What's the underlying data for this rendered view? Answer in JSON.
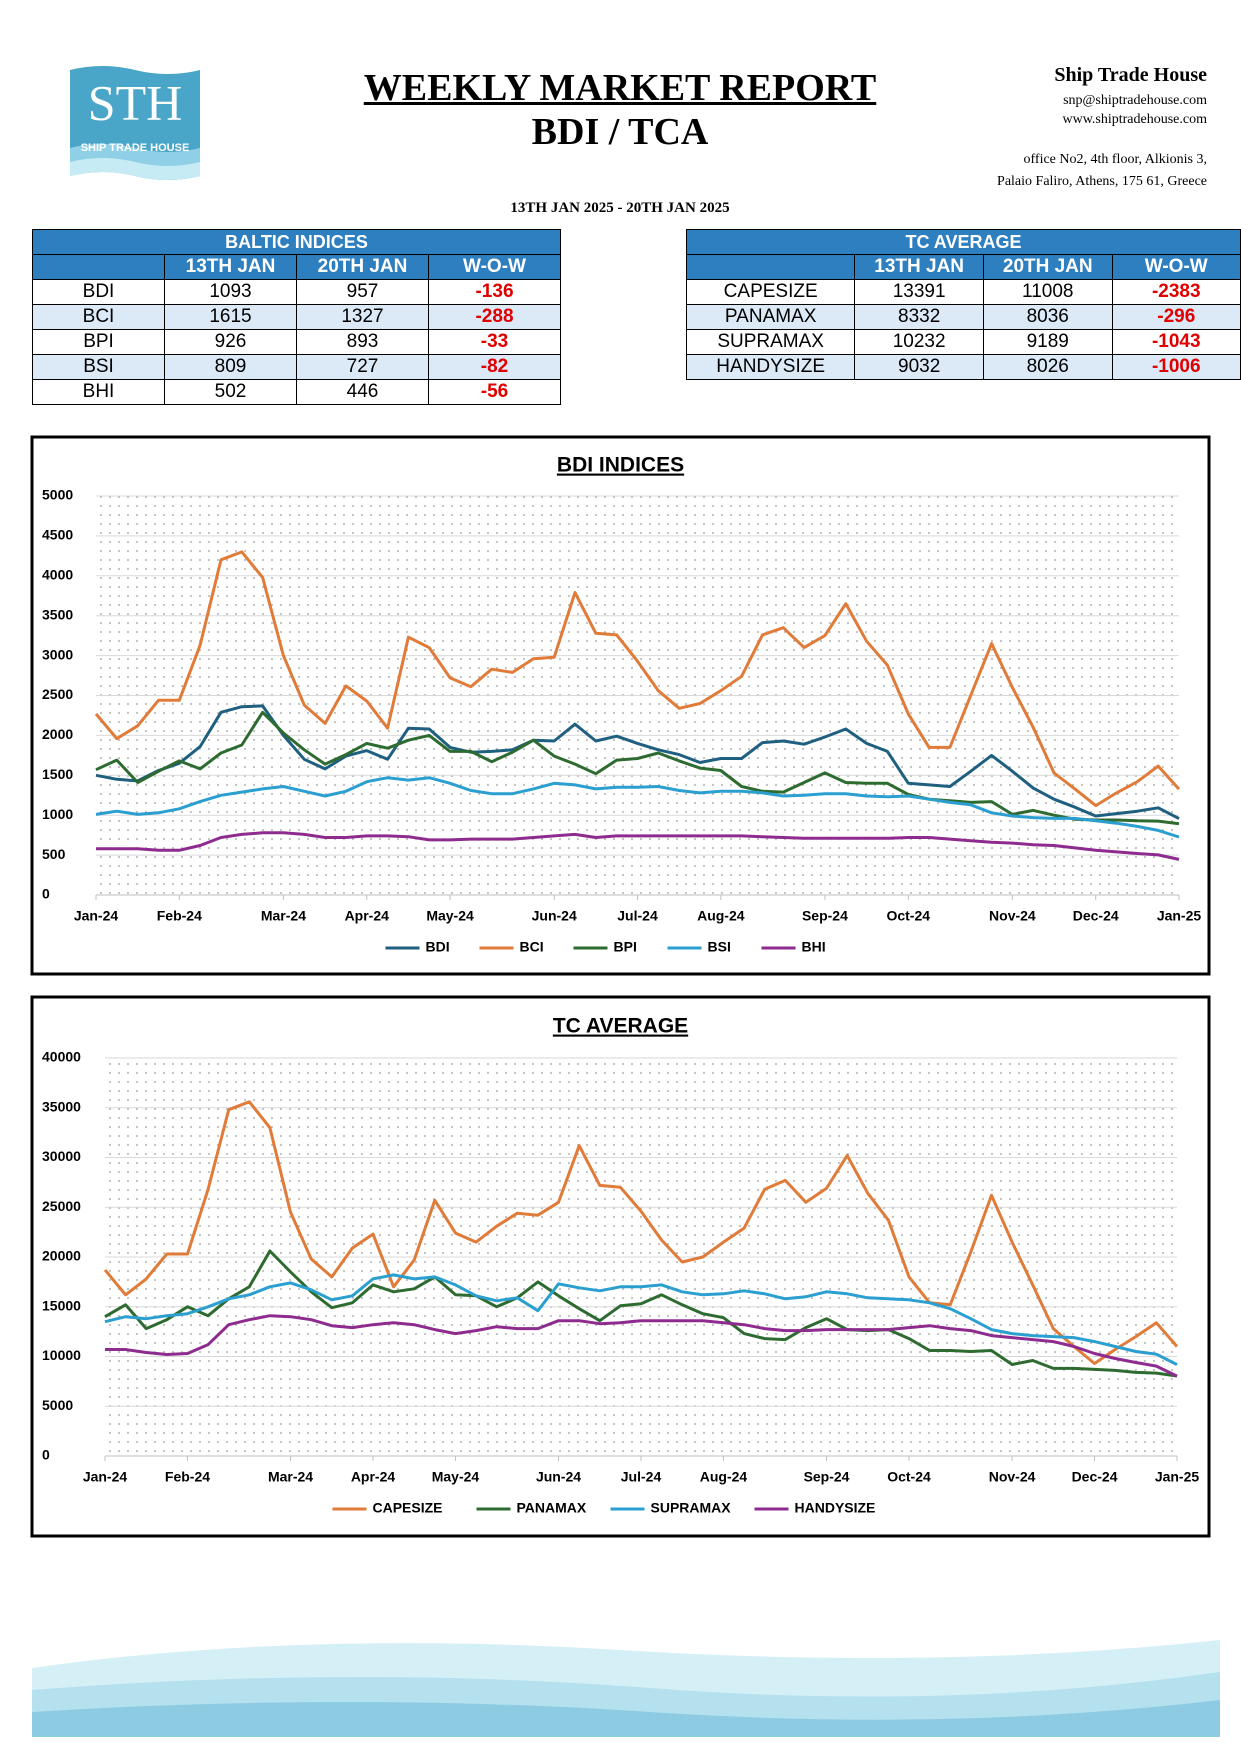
{
  "header": {
    "logo_text": "STH",
    "logo_sub": "SHIP TRADE HOUSE",
    "title": "WEEKLY MARKET REPORT",
    "subtitle": "BDI / TCA",
    "company": "Ship Trade House",
    "email": "snp@shiptradehouse.com",
    "website": "www.shiptradehouse.com",
    "address_line1": "office No2, 4th floor, Alkionis 3,",
    "address_line2": "Palaio Faliro, Athens, 175 61, Greece",
    "period": "13TH JAN 2025 - 20TH JAN 2025"
  },
  "tables": [
    {
      "title": "BALTIC INDICES",
      "columns": [
        "13TH JAN",
        "20TH JAN",
        "W-O-W"
      ],
      "rows": [
        [
          "BDI",
          1093,
          957,
          -136
        ],
        [
          "BCI",
          1615,
          1327,
          -288
        ],
        [
          "BPI",
          926,
          893,
          -33
        ],
        [
          "BSI",
          809,
          727,
          -82
        ],
        [
          "BHI",
          502,
          446,
          -56
        ]
      ]
    },
    {
      "title": "TC AVERAGE",
      "columns": [
        "13TH JAN",
        "20TH JAN",
        "W-O-W"
      ],
      "rows": [
        [
          "CAPESIZE",
          13391,
          11008,
          -2383
        ],
        [
          "PANAMAX",
          8332,
          8036,
          -296
        ],
        [
          "SUPRAMAX",
          10232,
          9189,
          -1043
        ],
        [
          "HANDYSIZE",
          9032,
          8026,
          -1006
        ]
      ]
    }
  ],
  "chart_data": [
    {
      "type": "line",
      "title": "BDI INDICES",
      "categories": [
        "Jan-24",
        null,
        null,
        null,
        "Feb-24",
        null,
        null,
        null,
        null,
        "Mar-24",
        null,
        null,
        null,
        "Apr-24",
        null,
        null,
        null,
        "May-24",
        null,
        null,
        null,
        null,
        "Jun-24",
        null,
        null,
        null,
        "Jul-24",
        null,
        null,
        null,
        "Aug-24",
        null,
        null,
        null,
        null,
        "Sep-24",
        null,
        null,
        null,
        "Oct-24",
        null,
        null,
        null,
        null,
        "Nov-24",
        null,
        null,
        null,
        "Dec-24",
        null,
        null,
        null,
        "Jan-25"
      ],
      "ylim": [
        0,
        5000
      ],
      "yticks": [
        0,
        500,
        1000,
        1500,
        2000,
        2500,
        3000,
        3500,
        4000,
        4500,
        5000
      ],
      "grid": true,
      "legend": "bottom",
      "series": [
        {
          "name": "BDI",
          "color": "#1f5f80",
          "values": [
            1500,
            1450,
            1430,
            1560,
            1650,
            1860,
            2290,
            2360,
            2370,
            2000,
            1700,
            1580,
            1740,
            1810,
            1700,
            2090,
            2080,
            1850,
            1790,
            1800,
            1820,
            1940,
            1930,
            2140,
            1930,
            1990,
            1900,
            1820,
            1760,
            1660,
            1710,
            1710,
            1910,
            1930,
            1890,
            1980,
            2080,
            1900,
            1800,
            1400,
            1380,
            1360,
            1550,
            1750,
            1550,
            1340,
            1200,
            1100,
            990,
            1020,
            1050,
            1093,
            957
          ]
        },
        {
          "name": "BCI",
          "color": "#e07b39",
          "values": [
            2270,
            1960,
            2120,
            2440,
            2440,
            3130,
            4200,
            4300,
            3980,
            3000,
            2380,
            2150,
            2620,
            2430,
            2090,
            3230,
            3100,
            2720,
            2610,
            2830,
            2790,
            2960,
            2980,
            3790,
            3280,
            3260,
            2930,
            2560,
            2340,
            2400,
            2560,
            2740,
            3260,
            3350,
            3100,
            3250,
            3650,
            3180,
            2880,
            2270,
            1850,
            1850,
            2500,
            3150,
            2600,
            2100,
            1530,
            1330,
            1120,
            1280,
            1420,
            1615,
            1327
          ]
        },
        {
          "name": "BPI",
          "color": "#2e6b30",
          "values": [
            1570,
            1690,
            1410,
            1550,
            1680,
            1580,
            1780,
            1880,
            2290,
            2030,
            1820,
            1640,
            1760,
            1900,
            1840,
            1940,
            2000,
            1800,
            1800,
            1670,
            1790,
            1940,
            1740,
            1640,
            1520,
            1690,
            1710,
            1780,
            1680,
            1590,
            1560,
            1360,
            1300,
            1290,
            1410,
            1530,
            1410,
            1400,
            1400,
            1260,
            1200,
            1180,
            1160,
            1170,
            1010,
            1060,
            1000,
            950,
            940,
            940,
            930,
            926,
            893
          ]
        },
        {
          "name": "BSI",
          "color": "#2a9fd0",
          "values": [
            1010,
            1050,
            1010,
            1030,
            1080,
            1170,
            1250,
            1290,
            1330,
            1360,
            1300,
            1240,
            1300,
            1420,
            1470,
            1440,
            1470,
            1400,
            1310,
            1270,
            1270,
            1330,
            1400,
            1380,
            1330,
            1350,
            1350,
            1360,
            1310,
            1280,
            1300,
            1300,
            1280,
            1240,
            1250,
            1270,
            1270,
            1240,
            1230,
            1240,
            1200,
            1160,
            1130,
            1030,
            990,
            970,
            960,
            960,
            930,
            900,
            860,
            809,
            727
          ]
        },
        {
          "name": "BHI",
          "color": "#8e2b8f",
          "values": [
            580,
            580,
            580,
            560,
            560,
            620,
            720,
            760,
            780,
            780,
            760,
            720,
            720,
            740,
            740,
            730,
            690,
            690,
            700,
            700,
            700,
            720,
            740,
            760,
            720,
            740,
            740,
            740,
            740,
            740,
            740,
            740,
            730,
            720,
            710,
            710,
            710,
            710,
            710,
            720,
            720,
            700,
            680,
            660,
            650,
            630,
            620,
            590,
            560,
            540,
            520,
            502,
            446
          ]
        }
      ]
    },
    {
      "type": "line",
      "title": "TC AVERAGE",
      "categories": [
        "Jan-24",
        null,
        null,
        null,
        "Feb-24",
        null,
        null,
        null,
        null,
        "Mar-24",
        null,
        null,
        null,
        "Apr-24",
        null,
        null,
        null,
        "May-24",
        null,
        null,
        null,
        null,
        "Jun-24",
        null,
        null,
        null,
        "Jul-24",
        null,
        null,
        null,
        "Aug-24",
        null,
        null,
        null,
        null,
        "Sep-24",
        null,
        null,
        null,
        "Oct-24",
        null,
        null,
        null,
        null,
        "Nov-24",
        null,
        null,
        null,
        "Dec-24",
        null,
        null,
        null,
        "Jan-25"
      ],
      "ylim": [
        0,
        40000
      ],
      "yticks": [
        0,
        5000,
        10000,
        15000,
        20000,
        25000,
        30000,
        35000,
        40000
      ],
      "grid": true,
      "legend": "bottom",
      "series": [
        {
          "name": "CAPESIZE",
          "color": "#e07b39",
          "values": [
            18700,
            16200,
            17800,
            20300,
            20300,
            26800,
            34800,
            35600,
            33000,
            24500,
            19800,
            18000,
            20900,
            22300,
            17000,
            19700,
            25700,
            22400,
            21500,
            23100,
            24400,
            24200,
            25500,
            31200,
            27200,
            27000,
            24600,
            21700,
            19500,
            20000,
            21500,
            22900,
            26800,
            27700,
            25500,
            26900,
            30200,
            26400,
            23700,
            18000,
            15400,
            15200,
            20500,
            26200,
            21500,
            17200,
            12800,
            11000,
            9300,
            10700,
            12000,
            13391,
            11008
          ]
        },
        {
          "name": "PANAMAX",
          "color": "#2e6b30",
          "values": [
            14000,
            15200,
            12800,
            13700,
            15000,
            14100,
            15800,
            17000,
            20600,
            18500,
            16500,
            14900,
            15400,
            17200,
            16500,
            16800,
            18000,
            16200,
            16100,
            15000,
            15900,
            17500,
            16100,
            14800,
            13600,
            15100,
            15300,
            16200,
            15200,
            14300,
            13900,
            12300,
            11800,
            11700,
            12900,
            13800,
            12700,
            12600,
            12700,
            11800,
            10600,
            10600,
            10500,
            10600,
            9200,
            9600,
            8800,
            8800,
            8700,
            8600,
            8400,
            8332,
            8036
          ]
        },
        {
          "name": "SUPRAMAX",
          "color": "#2a9fd0",
          "values": [
            13500,
            14000,
            13800,
            14100,
            14300,
            15000,
            15800,
            16200,
            17000,
            17400,
            16700,
            15700,
            16100,
            17800,
            18200,
            17800,
            18000,
            17200,
            16100,
            15600,
            15900,
            14600,
            17300,
            16900,
            16600,
            17000,
            17000,
            17200,
            16500,
            16200,
            16300,
            16600,
            16300,
            15800,
            16000,
            16500,
            16300,
            15900,
            15800,
            15700,
            15400,
            14800,
            13800,
            12700,
            12300,
            12100,
            12000,
            11900,
            11500,
            11000,
            10500,
            10232,
            9189
          ]
        },
        {
          "name": "HANDYSIZE",
          "color": "#8e2b8f",
          "values": [
            10700,
            10700,
            10400,
            10200,
            10300,
            11200,
            13200,
            13700,
            14100,
            14000,
            13700,
            13100,
            12900,
            13200,
            13400,
            13200,
            12700,
            12300,
            12600,
            13000,
            12800,
            12800,
            13600,
            13600,
            13300,
            13400,
            13600,
            13600,
            13600,
            13600,
            13400,
            13200,
            12800,
            12600,
            12600,
            12700,
            12700,
            12700,
            12700,
            12900,
            13100,
            12800,
            12600,
            12100,
            11900,
            11700,
            11500,
            11000,
            10300,
            9800,
            9400,
            9032,
            8026
          ]
        }
      ]
    }
  ]
}
